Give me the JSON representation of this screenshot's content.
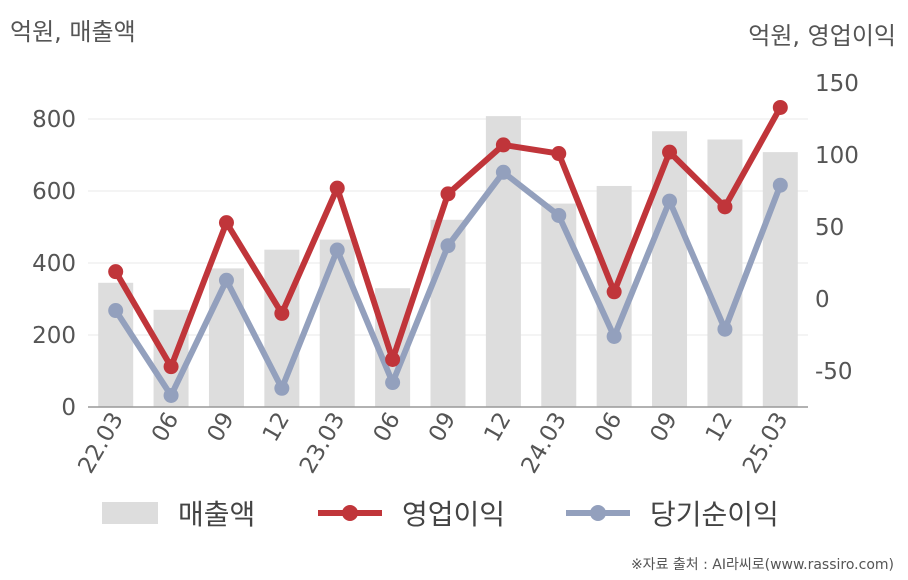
{
  "chart_data": {
    "type": "bar+line",
    "left_unit_label": "억원, 매출액",
    "right_unit_label": "억원, 영업이익",
    "categories": [
      "22.03",
      "06",
      "09",
      "12",
      "23.03",
      "06",
      "09",
      "12",
      "24.03",
      "06",
      "09",
      "12",
      "25.03"
    ],
    "left_axis": {
      "ylim": [
        0,
        900
      ],
      "ticks": [
        0,
        200,
        400,
        600,
        800
      ]
    },
    "right_axis": {
      "ylim": [
        -75,
        150
      ],
      "ticks": [
        -50,
        0,
        50,
        100,
        150
      ]
    },
    "grid": true,
    "legend_position": "bottom",
    "series": [
      {
        "name": "매출액",
        "type": "bar",
        "axis": "left",
        "color": "#dddddd",
        "values": [
          345,
          270,
          385,
          437,
          465,
          330,
          520,
          808,
          565,
          614,
          766,
          743,
          708
        ]
      },
      {
        "name": "영업이익",
        "type": "line",
        "axis": "right",
        "color": "#c0353a",
        "values": [
          19,
          -47,
          53,
          -10,
          77,
          -42,
          73,
          107,
          101,
          5,
          102,
          64,
          133
        ]
      },
      {
        "name": "당기순이익",
        "type": "line",
        "axis": "right",
        "color": "#93a0bd",
        "values": [
          -8,
          -67,
          13,
          -62,
          34,
          -58,
          37,
          88,
          58,
          -26,
          68,
          -21,
          79
        ]
      }
    ]
  },
  "source": "※자료 출처 : AI라씨로(www.rassiro.com)"
}
